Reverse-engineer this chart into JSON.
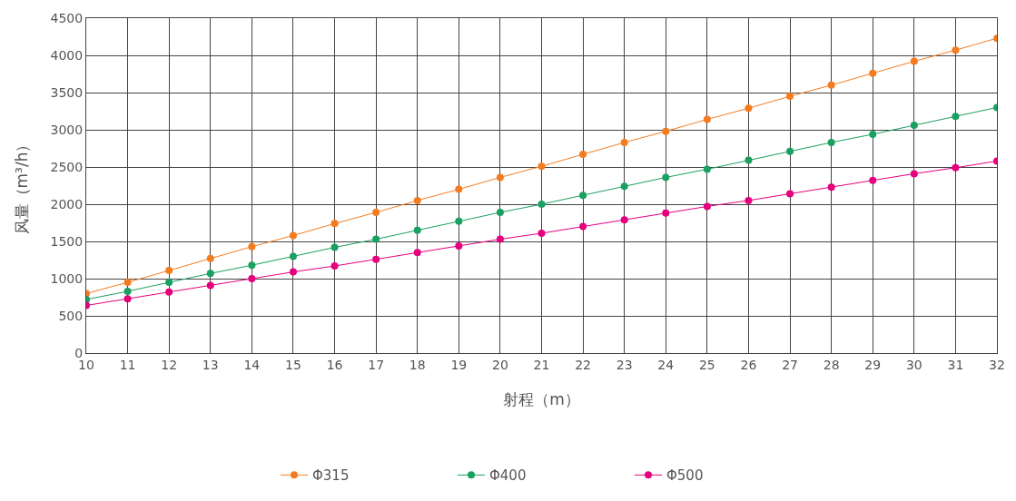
{
  "chart_data": {
    "type": "line",
    "xlabel": "射程（m）",
    "ylabel": "风量（m³/h）",
    "x": [
      10,
      11,
      12,
      13,
      14,
      15,
      16,
      17,
      18,
      19,
      20,
      21,
      22,
      23,
      24,
      25,
      26,
      27,
      28,
      29,
      30,
      31,
      32
    ],
    "series": [
      {
        "name": "Φ315",
        "color": "#f47c20",
        "values": [
          800,
          950,
          1110,
          1270,
          1430,
          1580,
          1740,
          1890,
          2050,
          2200,
          2360,
          2510,
          2670,
          2830,
          2980,
          3140,
          3290,
          3450,
          3600,
          3760,
          3920,
          4070,
          4230
        ]
      },
      {
        "name": "Φ400",
        "color": "#1aa060",
        "values": [
          720,
          830,
          950,
          1070,
          1180,
          1300,
          1420,
          1530,
          1650,
          1770,
          1890,
          2000,
          2120,
          2240,
          2360,
          2470,
          2590,
          2710,
          2830,
          2940,
          3060,
          3180,
          3300
        ]
      },
      {
        "name": "Φ500",
        "color": "#e6007e",
        "values": [
          640,
          730,
          820,
          910,
          1000,
          1090,
          1170,
          1260,
          1350,
          1440,
          1530,
          1610,
          1700,
          1790,
          1880,
          1970,
          2050,
          2140,
          2230,
          2320,
          2410,
          2490,
          2580
        ]
      }
    ],
    "xlim": [
      10,
      32
    ],
    "xticks": [
      10,
      11,
      12,
      13,
      14,
      15,
      16,
      17,
      18,
      19,
      20,
      21,
      22,
      23,
      24,
      25,
      26,
      27,
      28,
      29,
      30,
      31,
      32
    ],
    "ylim": [
      0,
      4500
    ],
    "yticks": [
      0,
      500,
      1000,
      1500,
      2000,
      2500,
      3000,
      3500,
      4000,
      4500
    ],
    "grid": true,
    "legend": "bottom",
    "marker": "circle",
    "line_style": "solid"
  }
}
